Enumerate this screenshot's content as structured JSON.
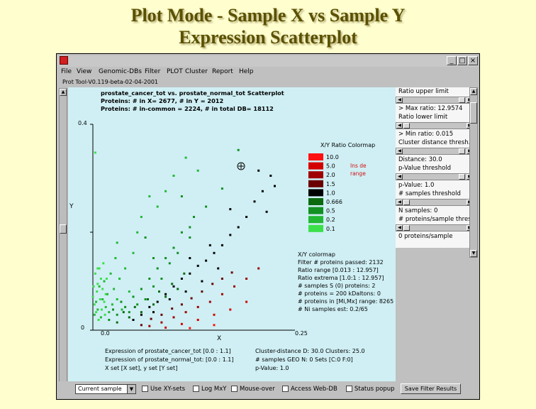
{
  "slide_title": [
    "Plot Mode - Sample X vs Sample Y",
    "Expression Scatterplot"
  ],
  "window": {
    "menu": [
      "File",
      "View",
      "Genomic-DBs",
      "Filter",
      "PLOT",
      "Cluster",
      "Report",
      "Help"
    ],
    "status": "Prot Tool-V0.119-beta-02-04-2001"
  },
  "plot": {
    "header": [
      "prostate_cancer_tot vs. prostate_normal_tot Scatterplot",
      "Proteins: # in X= 2677, # in Y = 2012",
      "Proteins: # in-common = 2224, # in total DB= 18112"
    ],
    "y_axis_label": "Y",
    "x_axis_label": "X",
    "y_top_tick": "0.4",
    "y_bottom_tick": "0",
    "x_left_tick": "0.0",
    "x_right_tick": "0.25",
    "colormap": {
      "title": "X/Y Ratio Colormap",
      "entries": [
        {
          "label": "10.0",
          "color": "#ff1010"
        },
        {
          "label": "5.0",
          "color": "#d40000"
        },
        {
          "label": "2.0",
          "color": "#a00000"
        },
        {
          "label": "1.5",
          "color": "#6a0000"
        },
        {
          "label": "1.0",
          "color": "#000000"
        },
        {
          "label": "0.666",
          "color": "#0b6a10"
        },
        {
          "label": "0.5",
          "color": "#129022"
        },
        {
          "label": "0.2",
          "color": "#22b834"
        },
        {
          "label": "0.1",
          "color": "#3ce04a"
        }
      ],
      "note": [
        "Ins de",
        "range"
      ]
    },
    "stats": [
      "X/Y colormap",
      "Filter # proteins passed: 2132",
      "Ratio range [0.013 : 12.957]",
      "Ratio extrema [1.0:1 : 12.957]",
      "# samples S (0) proteins: 2",
      "# proteins = 200 kDaltons: 0",
      "# proteins in [Mi,Mx] range: 8265",
      "# Ni samples est: 0.2/65"
    ],
    "footer_left": [
      "Expression of prostate_cancer_tot [0.0 : 1.1]",
      "Expression of prostate_normal_tot: [0.0 : 1.1]",
      "X set [X set], y set [Y set]"
    ],
    "footer_right": [
      "Cluster-distance D: 30.0  Clusters: 25.0",
      "# samples GEO N: 0  Sets [C:0 F:0]",
      "p-Value: 1.0"
    ]
  },
  "right_panel": [
    "Ratio upper limit",
    "> Max ratio: 12.9574",
    "Ratio lower limit",
    "> Min ratio: 0.015",
    "Cluster distance thresh.",
    "Distance: 30.0",
    "p-Value threshold",
    "p-Value: 1.0",
    "# samples threshold",
    "N samples: 0",
    "# proteins/sample thresh.",
    "0 proteins/sample"
  ],
  "bottom_bar": {
    "select_value": "Current sample",
    "checkboxes": [
      "Use XY-sets",
      "Log MxY",
      "Mouse-over",
      "Access Web-DB",
      "Status popup"
    ],
    "save_button": "Save Filter Results"
  },
  "chart_data": {
    "type": "scatter",
    "title": "prostate_cancer_tot vs. prostate_normal_tot Scatterplot",
    "xlabel": "X",
    "ylabel": "Y",
    "xlim": [
      0.0,
      0.25
    ],
    "ylim": [
      0,
      0.4
    ],
    "grid": false,
    "legend": "right (X/Y Ratio Colormap)",
    "series": [
      {
        "name": "0.1",
        "color": "#3ce04a",
        "points": [
          [
            0.0,
            0.065
          ],
          [
            0.001,
            0.085
          ],
          [
            0.002,
            0.05
          ],
          [
            0.003,
            0.11
          ],
          [
            0.004,
            0.035
          ],
          [
            0.005,
            0.075
          ],
          [
            0.006,
            0.09
          ],
          [
            0.007,
            0.02
          ],
          [
            0.008,
            0.12
          ],
          [
            0.009,
            0.06
          ],
          [
            0.01,
            0.1
          ],
          [
            0.011,
            0.04
          ],
          [
            0.012,
            0.08
          ],
          [
            0.013,
            0.13
          ],
          [
            0.014,
            0.055
          ],
          [
            0.003,
            0.345
          ],
          [
            0.015,
            0.03
          ],
          [
            0.016,
            0.07
          ],
          [
            0.017,
            0.1
          ],
          [
            0.006,
            0.12
          ]
        ]
      },
      {
        "name": "0.2",
        "color": "#22b834",
        "points": [
          [
            0.002,
            0.03
          ],
          [
            0.004,
            0.055
          ],
          [
            0.006,
            0.04
          ],
          [
            0.008,
            0.085
          ],
          [
            0.01,
            0.025
          ],
          [
            0.012,
            0.06
          ],
          [
            0.014,
            0.095
          ],
          [
            0.016,
            0.045
          ],
          [
            0.018,
            0.07
          ],
          [
            0.02,
            0.035
          ],
          [
            0.022,
            0.11
          ],
          [
            0.024,
            0.05
          ],
          [
            0.026,
            0.08
          ],
          [
            0.028,
            0.14
          ],
          [
            0.03,
            0.06
          ],
          [
            0.033,
            0.1
          ],
          [
            0.036,
            0.04
          ],
          [
            0.04,
            0.12
          ],
          [
            0.045,
            0.075
          ],
          [
            0.03,
            0.17
          ],
          [
            0.05,
            0.15
          ],
          [
            0.055,
            0.19
          ],
          [
            0.06,
            0.22
          ],
          [
            0.07,
            0.26
          ],
          [
            0.08,
            0.24
          ],
          [
            0.09,
            0.27
          ],
          [
            0.1,
            0.3
          ],
          [
            0.115,
            0.335
          ],
          [
            0.13,
            0.31
          ]
        ]
      },
      {
        "name": "0.5",
        "color": "#129022",
        "points": [
          [
            0.02,
            0.02
          ],
          [
            0.025,
            0.04
          ],
          [
            0.03,
            0.03
          ],
          [
            0.035,
            0.055
          ],
          [
            0.04,
            0.045
          ],
          [
            0.045,
            0.035
          ],
          [
            0.05,
            0.065
          ],
          [
            0.055,
            0.05
          ],
          [
            0.06,
            0.08
          ],
          [
            0.065,
            0.06
          ],
          [
            0.07,
            0.1
          ],
          [
            0.075,
            0.085
          ],
          [
            0.08,
            0.12
          ],
          [
            0.085,
            0.1
          ],
          [
            0.09,
            0.14
          ],
          [
            0.095,
            0.13
          ],
          [
            0.1,
            0.16
          ],
          [
            0.105,
            0.15
          ],
          [
            0.11,
            0.19
          ],
          [
            0.12,
            0.18
          ],
          [
            0.125,
            0.22
          ],
          [
            0.14,
            0.24
          ],
          [
            0.16,
            0.275
          ],
          [
            0.18,
            0.35
          ],
          [
            0.11,
            0.26
          ],
          [
            0.12,
            0.2
          ],
          [
            0.065,
            0.18
          ],
          [
            0.075,
            0.14
          ]
        ]
      },
      {
        "name": "0.666",
        "color": "#0b6a10",
        "points": [
          [
            0.03,
            0.015
          ],
          [
            0.038,
            0.035
          ],
          [
            0.045,
            0.025
          ],
          [
            0.052,
            0.045
          ],
          [
            0.06,
            0.035
          ],
          [
            0.068,
            0.06
          ],
          [
            0.075,
            0.05
          ],
          [
            0.082,
            0.075
          ],
          [
            0.09,
            0.065
          ],
          [
            0.098,
            0.09
          ],
          [
            0.105,
            0.08
          ],
          [
            0.113,
            0.11
          ]
        ]
      },
      {
        "name": "1.0",
        "color": "#000000",
        "points": [
          [
            0.05,
            0.02
          ],
          [
            0.06,
            0.03
          ],
          [
            0.07,
            0.045
          ],
          [
            0.08,
            0.055
          ],
          [
            0.09,
            0.07
          ],
          [
            0.1,
            0.085
          ],
          [
            0.11,
            0.1
          ],
          [
            0.12,
            0.11
          ],
          [
            0.13,
            0.125
          ],
          [
            0.14,
            0.135
          ],
          [
            0.15,
            0.15
          ],
          [
            0.16,
            0.165
          ],
          [
            0.17,
            0.185
          ],
          [
            0.18,
            0.2
          ],
          [
            0.19,
            0.22
          ],
          [
            0.2,
            0.25
          ],
          [
            0.21,
            0.27
          ],
          [
            0.215,
            0.23
          ],
          [
            0.22,
            0.3
          ],
          [
            0.225,
            0.28
          ],
          [
            0.205,
            0.31
          ],
          [
            0.17,
            0.235
          ],
          [
            0.155,
            0.12
          ],
          [
            0.135,
            0.095
          ],
          [
            0.115,
            0.075
          ],
          [
            0.095,
            0.06
          ],
          [
            0.075,
            0.035
          ],
          [
            0.12,
            0.14
          ],
          [
            0.145,
            0.165
          ]
        ]
      },
      {
        "name": "1.5",
        "color": "#6a0000",
        "points": [
          [
            0.06,
            0.01
          ],
          [
            0.072,
            0.022
          ],
          [
            0.085,
            0.03
          ],
          [
            0.098,
            0.042
          ],
          [
            0.11,
            0.05
          ],
          [
            0.122,
            0.062
          ],
          [
            0.135,
            0.075
          ],
          [
            0.148,
            0.09
          ],
          [
            0.16,
            0.1
          ],
          [
            0.172,
            0.112
          ]
        ]
      },
      {
        "name": "2.0",
        "color": "#a00000",
        "points": [
          [
            0.07,
            0.008
          ],
          [
            0.085,
            0.015
          ],
          [
            0.1,
            0.025
          ],
          [
            0.115,
            0.035
          ],
          [
            0.13,
            0.045
          ],
          [
            0.145,
            0.055
          ],
          [
            0.16,
            0.07
          ],
          [
            0.175,
            0.085
          ],
          [
            0.19,
            0.1
          ],
          [
            0.205,
            0.12
          ]
        ]
      },
      {
        "name": "5.0",
        "color": "#d40000",
        "points": [
          [
            0.09,
            0.005
          ],
          [
            0.11,
            0.012
          ],
          [
            0.13,
            0.02
          ],
          [
            0.15,
            0.03
          ],
          [
            0.17,
            0.04
          ],
          [
            0.19,
            0.055
          ]
        ]
      },
      {
        "name": "10.0",
        "color": "#ff1010",
        "points": [
          [
            0.12,
            0.004
          ],
          [
            0.15,
            0.01
          ]
        ]
      }
    ]
  }
}
